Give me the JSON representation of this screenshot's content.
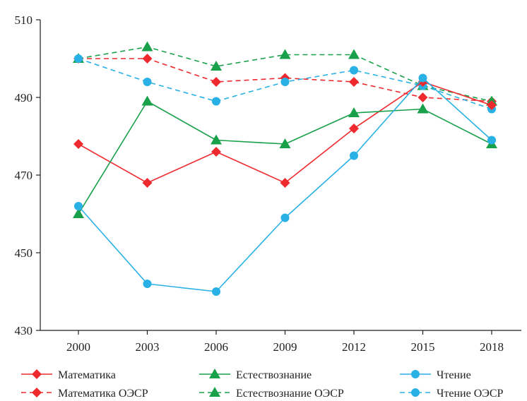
{
  "chart_data": {
    "type": "line",
    "title": "",
    "xlabel": "",
    "ylabel": "",
    "categories": [
      "2000",
      "2003",
      "2006",
      "2009",
      "2012",
      "2015",
      "2018"
    ],
    "ylim": [
      430,
      510
    ],
    "yticks": [
      "430",
      "450",
      "470",
      "490",
      "510"
    ],
    "grid": false,
    "legend_position": "bottom",
    "series": [
      {
        "name": "Математика",
        "values": [
          478,
          468,
          476,
          468,
          482,
          494,
          488
        ],
        "color": "#ee2a2f",
        "dash": "solid",
        "marker": "diamond"
      },
      {
        "name": "Естествознание",
        "values": [
          460,
          489,
          479,
          478,
          486,
          487,
          478
        ],
        "color": "#18a04a",
        "dash": "solid",
        "marker": "triangle"
      },
      {
        "name": "Чтение",
        "values": [
          462,
          442,
          440,
          459,
          475,
          495,
          479
        ],
        "color": "#29b1e6",
        "dash": "solid",
        "marker": "circle"
      },
      {
        "name": "Математика ОЭСР",
        "values": [
          500,
          500,
          494,
          495,
          494,
          490,
          489
        ],
        "color": "#ee2a2f",
        "dash": "dashed",
        "marker": "diamond"
      },
      {
        "name": "Естествознание ОЭСР",
        "values": [
          500,
          503,
          498,
          501,
          501,
          493,
          489
        ],
        "color": "#18a04a",
        "dash": "dashed",
        "marker": "triangle"
      },
      {
        "name": "Чтение ОЭСР",
        "values": [
          500,
          494,
          489,
          494,
          497,
          493,
          487
        ],
        "color": "#29b1e6",
        "dash": "dashed",
        "marker": "circle"
      }
    ]
  },
  "legend": {
    "items": [
      "Математика",
      "Естествознание",
      "Чтение",
      "Математика ОЭСР",
      "Естествознание ОЭСР",
      "Чтение ОЭСР"
    ]
  },
  "colors": {
    "axis": "#231f20",
    "math": "#ee2a2f",
    "science": "#18a04a",
    "reading": "#29b1e6"
  }
}
